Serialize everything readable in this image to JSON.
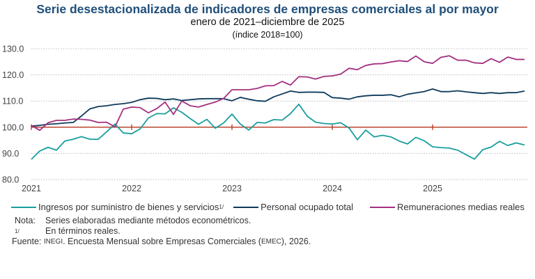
{
  "chart_data": {
    "type": "line",
    "title": "Serie desestacionalizada de indicadores de empresas comerciales al por mayor",
    "subtitle": "enero de 2021–diciembre de 2025",
    "subtitle2": "(índice 2018=100)",
    "x_start": "2021-01",
    "x_frequency": "monthly",
    "x_ticks": [
      "2021",
      "2022",
      "2023",
      "2024",
      "2025"
    ],
    "y_ticks": [
      "80.0",
      "90.0",
      "100.0",
      "110.0",
      "120.0",
      "130.0"
    ],
    "ylim": [
      80,
      130
    ],
    "grid": "horizontal dotted",
    "reference_line": 100,
    "legend_position": "bottom",
    "series": [
      {
        "name": "Ingresos por suministro de bienes y servicios",
        "note": "1/",
        "color": "#1a9e9e",
        "values": [
          87.7,
          90.9,
          92.3,
          91.2,
          94.7,
          95.4,
          96.4,
          95.4,
          95.4,
          98.2,
          101.2,
          97.8,
          97.5,
          99.3,
          103.5,
          105.2,
          105.1,
          107.4,
          105.7,
          103.3,
          101.1,
          103.0,
          99.6,
          101.6,
          105.0,
          101.2,
          98.9,
          101.8,
          101.6,
          102.9,
          102.7,
          105.2,
          108.8,
          104.2,
          101.9,
          101.4,
          101.2,
          101.7,
          99.7,
          95.2,
          98.9,
          96.3,
          96.9,
          96.3,
          94.7,
          93.6,
          96.1,
          94.8,
          92.5,
          92.2,
          92.0,
          91.2,
          89.5,
          87.8,
          91.4,
          92.4,
          94.6,
          93.0,
          94.0,
          93.2
        ]
      },
      {
        "name": "Personal ocupado total",
        "color": "#0d3a5c",
        "values": [
          100.4,
          100.7,
          101.1,
          101.3,
          101.6,
          101.8,
          104.3,
          107.0,
          107.9,
          108.2,
          108.7,
          109.0,
          109.5,
          110.5,
          111.1,
          111.0,
          110.5,
          110.8,
          110.2,
          110.5,
          110.8,
          110.9,
          110.9,
          110.9,
          110.1,
          111.4,
          110.7,
          110.1,
          109.9,
          111.6,
          112.7,
          113.8,
          113.3,
          113.4,
          113.4,
          113.3,
          111.3,
          111.1,
          110.7,
          111.6,
          112.0,
          112.2,
          112.2,
          112.4,
          111.6,
          112.6,
          113.1,
          113.6,
          114.6,
          113.6,
          113.6,
          113.9,
          113.5,
          113.2,
          112.9,
          113.2,
          112.9,
          113.2,
          113.2,
          113.8
        ]
      },
      {
        "name": "Remuneraciones medias reales",
        "color": "#a3307f",
        "values": [
          100.7,
          98.8,
          101.7,
          102.6,
          102.6,
          103.1,
          103.0,
          102.7,
          101.8,
          101.9,
          100.1,
          106.9,
          107.7,
          107.5,
          105.5,
          107.1,
          109.6,
          104.9,
          110.0,
          108.2,
          107.7,
          108.7,
          109.6,
          111.0,
          114.3,
          114.3,
          114.3,
          114.8,
          115.8,
          115.9,
          117.5,
          116.1,
          119.3,
          119.2,
          118.4,
          119.4,
          119.6,
          120.3,
          122.5,
          122.0,
          123.6,
          124.2,
          124.3,
          124.9,
          125.4,
          125.1,
          127.2,
          125.0,
          124.4,
          126.7,
          127.3,
          125.6,
          125.6,
          124.6,
          124.4,
          126.2,
          124.8,
          126.8,
          125.9,
          125.9
        ]
      }
    ]
  },
  "notes": {
    "nota_label": "Nota:",
    "nota_text": "Series elaboradas mediante métodos econométricos.",
    "footnote_mark": "1/",
    "footnote_text": "En términos reales.",
    "fuente_label": "Fuente:",
    "fuente_org": "INEGI",
    "fuente_text_1": ". Encuesta Mensual sobre Empresas Comerciales (",
    "fuente_abbr": "EMEC",
    "fuente_text_2": "), 2026."
  }
}
